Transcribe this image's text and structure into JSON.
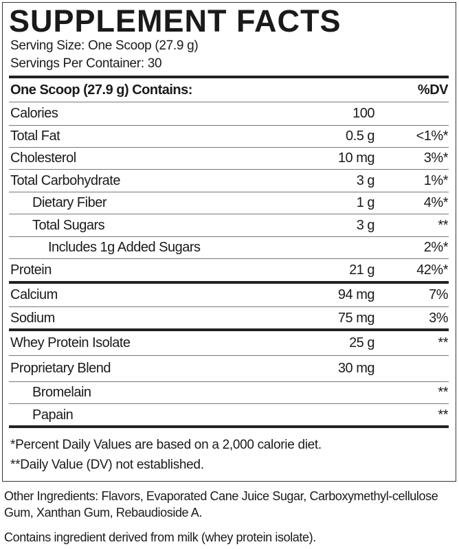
{
  "title": "SUPPLEMENT FACTS",
  "serving_size": "Serving Size: One Scoop (27.9 g)",
  "servings_per_container": "Servings Per Container: 30",
  "header": {
    "label": "One Scoop (27.9 g) Contains:",
    "dv": "%DV"
  },
  "rows": [
    {
      "label": "Calories",
      "amount": "100",
      "dv": ""
    },
    {
      "label": "Total Fat",
      "amount": "0.5 g",
      "dv": "<1%*"
    },
    {
      "label": "Cholesterol",
      "amount": "10 mg",
      "dv": "3%*"
    },
    {
      "label": "Total Carbohydrate",
      "amount": "3 g",
      "dv": "1%*"
    },
    {
      "label": "Dietary Fiber",
      "amount": "1 g",
      "dv": "4%*"
    },
    {
      "label": "Total Sugars",
      "amount": "3 g",
      "dv": "**"
    },
    {
      "label": "Includes 1g Added Sugars",
      "amount": "",
      "dv": "2%*"
    },
    {
      "label": "Protein",
      "amount": "21 g",
      "dv": "42%*"
    },
    {
      "label": "Calcium",
      "amount": "94 mg",
      "dv": "7%"
    },
    {
      "label": "Sodium",
      "amount": "75 mg",
      "dv": "3%"
    },
    {
      "label": "Whey Protein Isolate",
      "amount": "25 g",
      "dv": "**"
    },
    {
      "label": "Proprietary Blend",
      "amount": "30 mg",
      "dv": ""
    },
    {
      "label": "Bromelain",
      "amount": "",
      "dv": "**"
    },
    {
      "label": "Papain",
      "amount": "",
      "dv": "**"
    }
  ],
  "footnotes": [
    "*Percent Daily Values are based on a 2,000 calorie diet.",
    "**Daily Value (DV) not established."
  ],
  "other_ingredients": "Other Ingredients: Flavors, Evaporated Cane Juice Sugar, Carboxymethyl-cellulose Gum, Xanthan Gum, Rebaudioside A.",
  "allergen": "Contains ingredient derived from milk (whey protein isolate)."
}
